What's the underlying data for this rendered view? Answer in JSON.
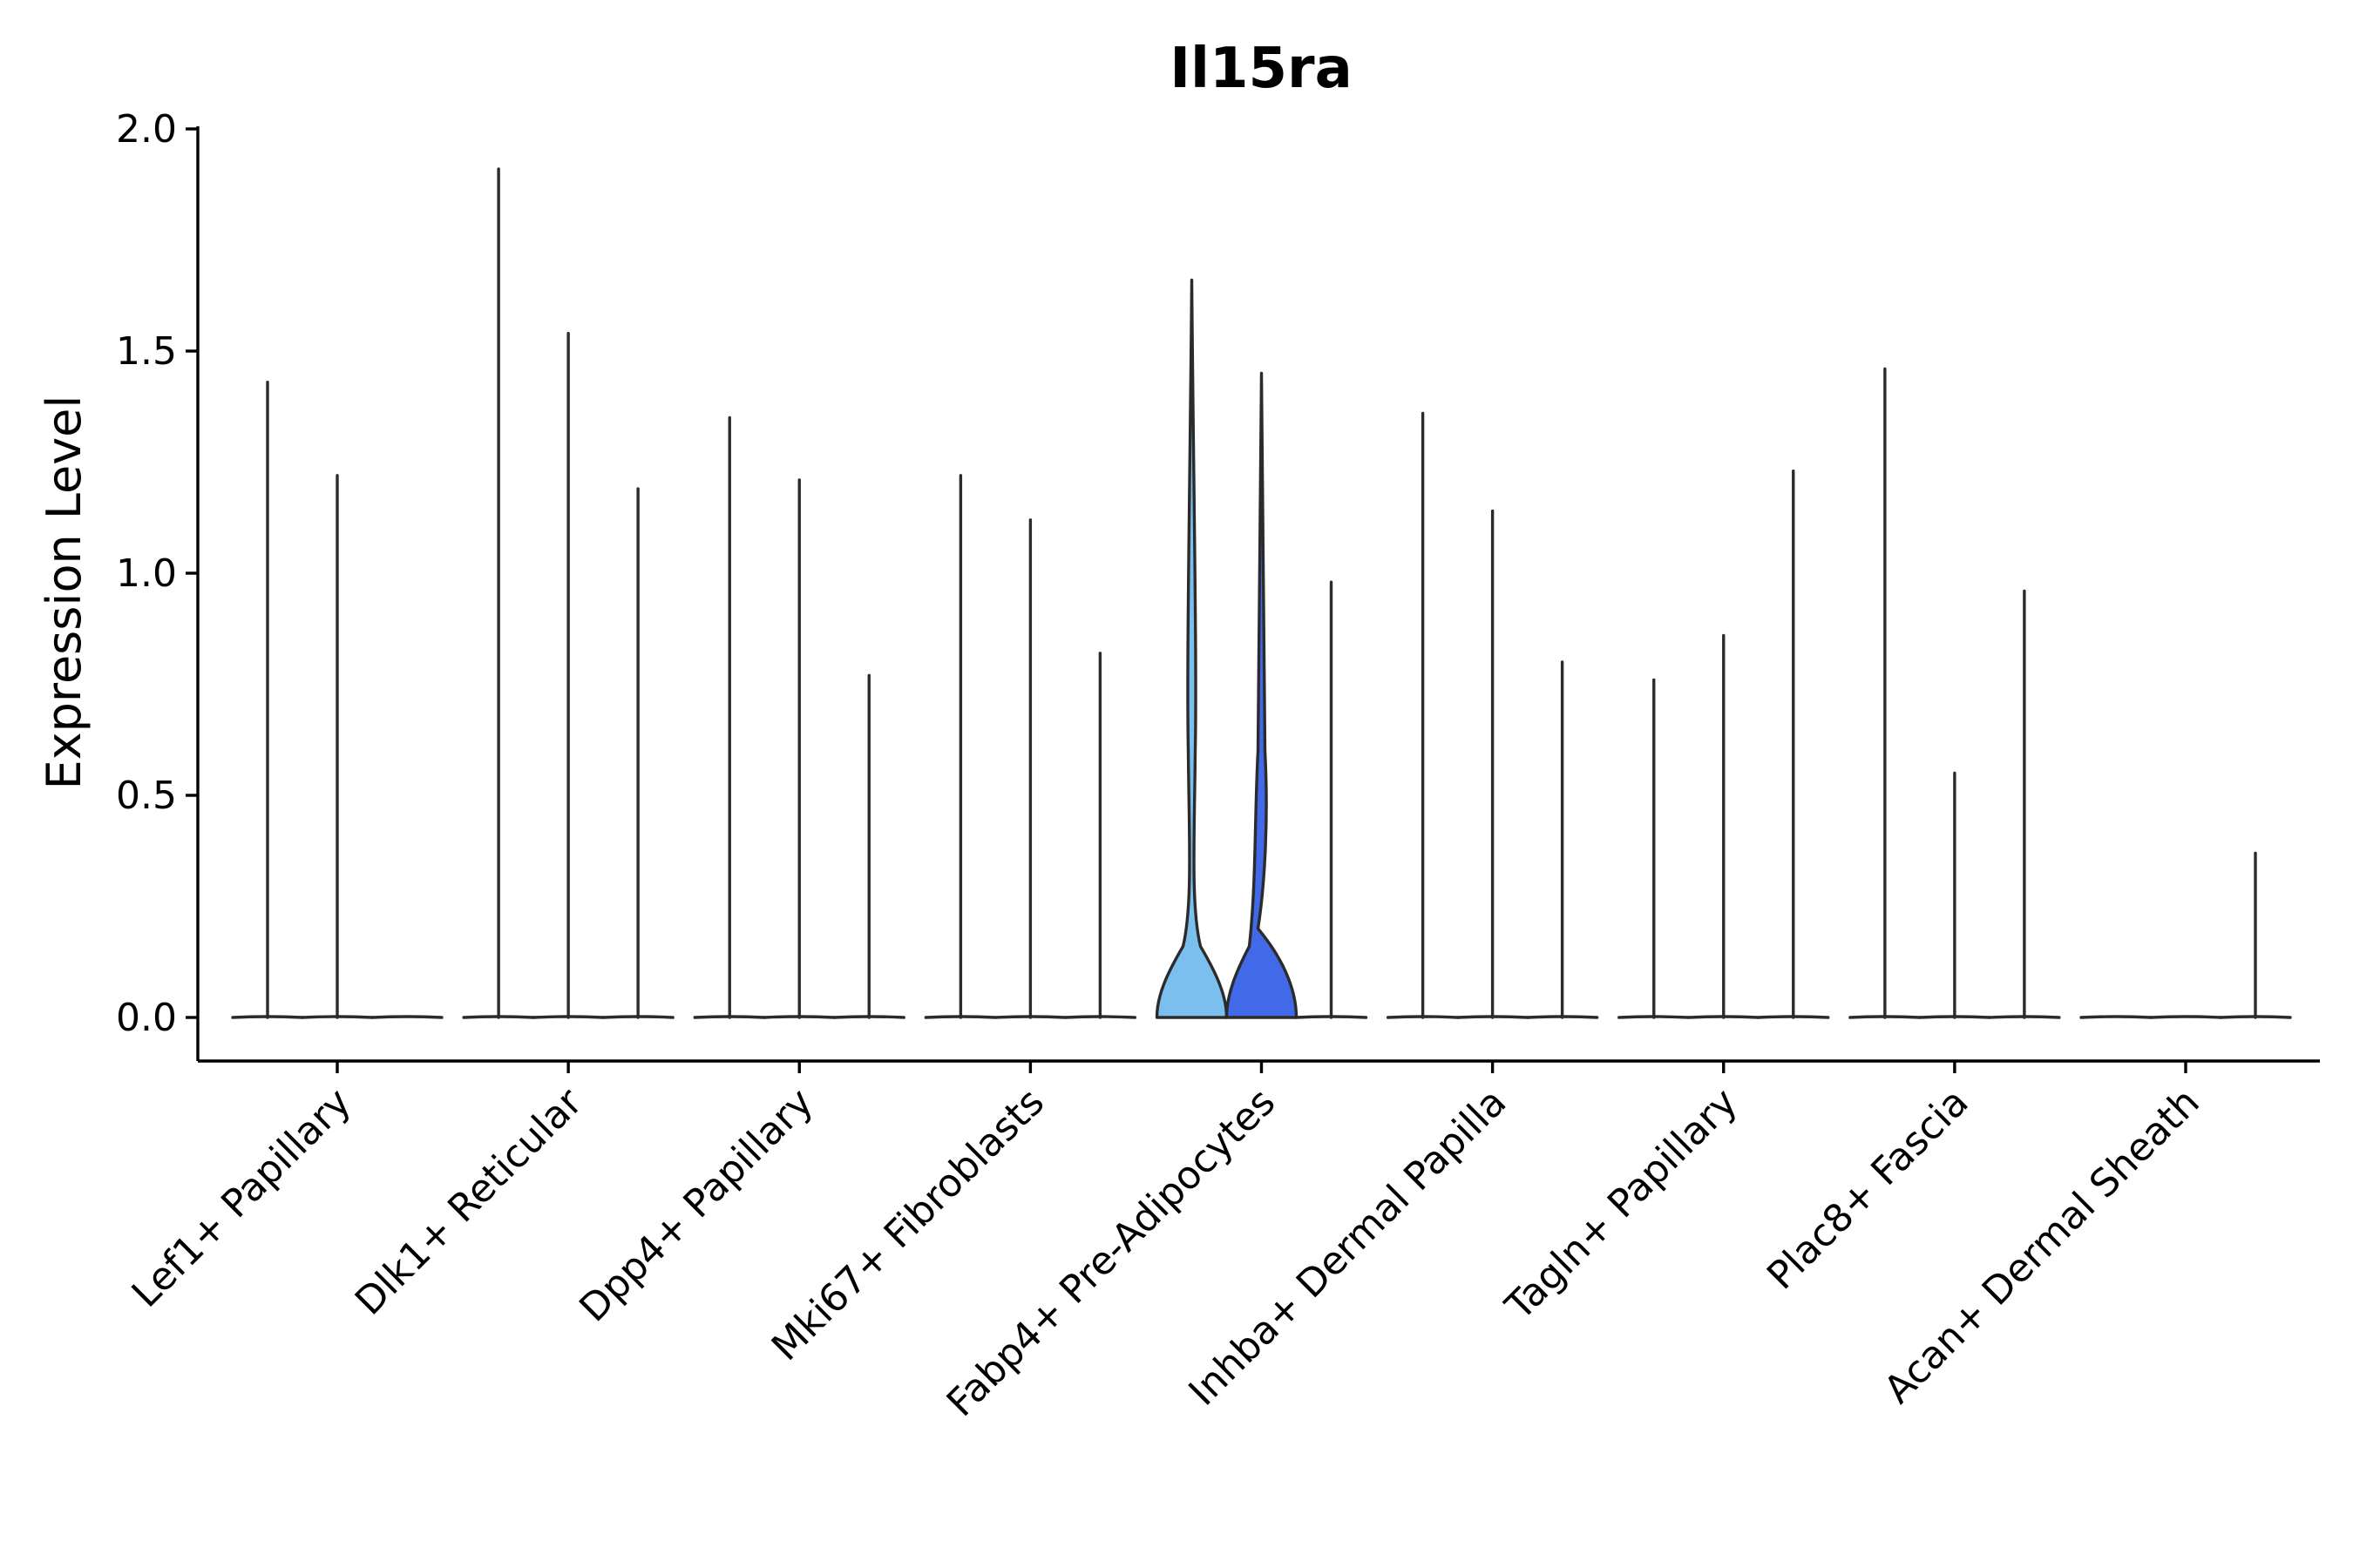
{
  "chart_data": {
    "type": "violin",
    "title": "Il15ra",
    "ylabel": "Expression Level",
    "xlabel": "",
    "ylim": [
      -0.1,
      2.0
    ],
    "yticks": [
      "0.0",
      "0.5",
      "1.0",
      "1.5",
      "2.0"
    ],
    "grid": false,
    "legend": "none",
    "categories": [
      "Lef1+ Papillary",
      "Dlk1+ Reticular",
      "Dpp4+ Papillary",
      "Mki67+ Fibroblasts",
      "Fabp4+ Pre-Adipocytes",
      "Inhba+ Dermal Papilla",
      "Tagln+ Papillary",
      "Plac8+ Fascia",
      "Acan+ Dermal Sheath"
    ],
    "groups": [
      {
        "category": "Lef1+ Papillary",
        "violins": [
          {
            "max": 1.43,
            "fill": "#ffffff",
            "shape": "flat"
          },
          {
            "max": 1.22,
            "fill": "#ffffff",
            "shape": "flat"
          },
          {
            "max": 0.0,
            "fill": "#ffffff",
            "shape": "flat"
          }
        ]
      },
      {
        "category": "Dlk1+ Reticular",
        "violins": [
          {
            "max": 1.91,
            "fill": "#ffffff",
            "shape": "flat"
          },
          {
            "max": 1.54,
            "fill": "#ffffff",
            "shape": "flat"
          },
          {
            "max": 1.19,
            "fill": "#ffffff",
            "shape": "flat"
          }
        ]
      },
      {
        "category": "Dpp4+ Papillary",
        "violins": [
          {
            "max": 1.35,
            "fill": "#ffffff",
            "shape": "flat"
          },
          {
            "max": 1.21,
            "fill": "#ffffff",
            "shape": "flat"
          },
          {
            "max": 0.77,
            "fill": "#ffffff",
            "shape": "flat"
          }
        ]
      },
      {
        "category": "Mki67+ Fibroblasts",
        "violins": [
          {
            "max": 1.22,
            "fill": "#ffffff",
            "shape": "flat"
          },
          {
            "max": 1.12,
            "fill": "#ffffff",
            "shape": "flat"
          },
          {
            "max": 0.82,
            "fill": "#ffffff",
            "shape": "flat"
          }
        ]
      },
      {
        "category": "Fabp4+ Pre-Adipocytes",
        "violins": [
          {
            "max": 1.66,
            "fill": "#7bbfee",
            "shape": "wide-a"
          },
          {
            "max": 1.45,
            "fill": "#4169e8",
            "shape": "wide-b"
          },
          {
            "max": 0.98,
            "fill": "#ffffff",
            "shape": "flat"
          }
        ]
      },
      {
        "category": "Inhba+ Dermal Papilla",
        "violins": [
          {
            "max": 1.36,
            "fill": "#ffffff",
            "shape": "flat"
          },
          {
            "max": 1.14,
            "fill": "#ffffff",
            "shape": "flat"
          },
          {
            "max": 0.8,
            "fill": "#ffffff",
            "shape": "flat"
          }
        ]
      },
      {
        "category": "Tagln+ Papillary",
        "violins": [
          {
            "max": 0.76,
            "fill": "#ffffff",
            "shape": "flat"
          },
          {
            "max": 0.86,
            "fill": "#ffffff",
            "shape": "flat"
          },
          {
            "max": 1.23,
            "fill": "#ffffff",
            "shape": "flat"
          }
        ]
      },
      {
        "category": "Plac8+ Fascia",
        "violins": [
          {
            "max": 1.46,
            "fill": "#ffffff",
            "shape": "flat"
          },
          {
            "max": 0.55,
            "fill": "#ffffff",
            "shape": "flat"
          },
          {
            "max": 0.96,
            "fill": "#ffffff",
            "shape": "flat"
          }
        ]
      },
      {
        "category": "Acan+ Dermal Sheath",
        "violins": [
          {
            "max": 0.0,
            "fill": "#ffffff",
            "shape": "flat"
          },
          {
            "max": 0.0,
            "fill": "#ffffff",
            "shape": "flat"
          },
          {
            "max": 0.37,
            "fill": "#ffffff",
            "shape": "flat"
          }
        ]
      }
    ]
  }
}
